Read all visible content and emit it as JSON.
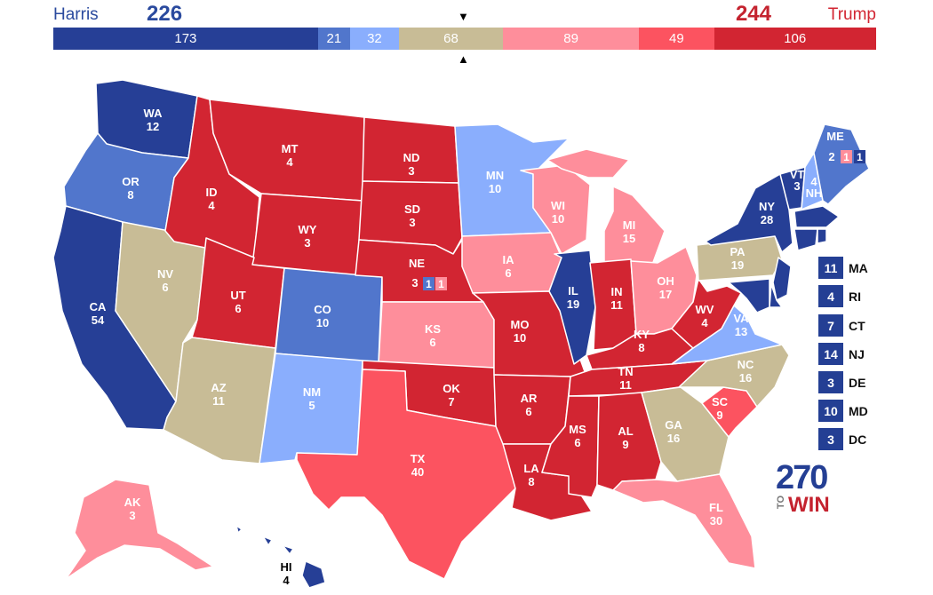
{
  "header": {
    "dem_name": "Harris",
    "dem_total": "226",
    "rep_name": "Trump",
    "rep_total": "244",
    "marker_down": "▼",
    "marker_up": "▲"
  },
  "tally": [
    {
      "label": "173",
      "value": 173,
      "color": "#263f96"
    },
    {
      "label": "21",
      "value": 21,
      "color": "#5176cc"
    },
    {
      "label": "32",
      "value": 32,
      "color": "#8aaefd"
    },
    {
      "label": "68",
      "value": 68,
      "color": "#c8bc96"
    },
    {
      "label": "89",
      "value": 89,
      "color": "#fe8e9b"
    },
    {
      "label": "49",
      "value": 49,
      "color": "#fc5360"
    },
    {
      "label": "106",
      "value": 106,
      "color": "#d22532"
    }
  ],
  "colors": {
    "safe_d": "#263f96",
    "likely_d": "#5176cc",
    "lean_d": "#8aaefd",
    "tossup": "#c8bc96",
    "lean_r": "#fe8e9b",
    "likely_r": "#fc5360",
    "safe_r": "#d22532"
  },
  "states": {
    "WA": {
      "abbr": "WA",
      "ev": "12",
      "rating": "safe_d"
    },
    "OR": {
      "abbr": "OR",
      "ev": "8",
      "rating": "likely_d"
    },
    "CA": {
      "abbr": "CA",
      "ev": "54",
      "rating": "safe_d"
    },
    "NV": {
      "abbr": "NV",
      "ev": "6",
      "rating": "tossup"
    },
    "ID": {
      "abbr": "ID",
      "ev": "4",
      "rating": "safe_r"
    },
    "MT": {
      "abbr": "MT",
      "ev": "4",
      "rating": "safe_r"
    },
    "WY": {
      "abbr": "WY",
      "ev": "3",
      "rating": "safe_r"
    },
    "UT": {
      "abbr": "UT",
      "ev": "6",
      "rating": "safe_r"
    },
    "AZ": {
      "abbr": "AZ",
      "ev": "11",
      "rating": "tossup"
    },
    "CO": {
      "abbr": "CO",
      "ev": "10",
      "rating": "likely_d"
    },
    "NM": {
      "abbr": "NM",
      "ev": "5",
      "rating": "lean_d"
    },
    "ND": {
      "abbr": "ND",
      "ev": "3",
      "rating": "safe_r"
    },
    "SD": {
      "abbr": "SD",
      "ev": "3",
      "rating": "safe_r"
    },
    "NE": {
      "abbr": "NE",
      "ev": "3",
      "rating": "safe_r"
    },
    "KS": {
      "abbr": "KS",
      "ev": "6",
      "rating": "lean_r"
    },
    "OK": {
      "abbr": "OK",
      "ev": "7",
      "rating": "safe_r"
    },
    "TX": {
      "abbr": "TX",
      "ev": "40",
      "rating": "likely_r"
    },
    "MN": {
      "abbr": "MN",
      "ev": "10",
      "rating": "lean_d"
    },
    "IA": {
      "abbr": "IA",
      "ev": "6",
      "rating": "lean_r"
    },
    "MO": {
      "abbr": "MO",
      "ev": "10",
      "rating": "safe_r"
    },
    "AR": {
      "abbr": "AR",
      "ev": "6",
      "rating": "safe_r"
    },
    "LA": {
      "abbr": "LA",
      "ev": "8",
      "rating": "safe_r"
    },
    "WI": {
      "abbr": "WI",
      "ev": "10",
      "rating": "lean_r"
    },
    "IL": {
      "abbr": "IL",
      "ev": "19",
      "rating": "safe_d"
    },
    "MI": {
      "abbr": "MI",
      "ev": "15",
      "rating": "lean_r"
    },
    "IN": {
      "abbr": "IN",
      "ev": "11",
      "rating": "safe_r"
    },
    "OH": {
      "abbr": "OH",
      "ev": "17",
      "rating": "lean_r"
    },
    "KY": {
      "abbr": "KY",
      "ev": "8",
      "rating": "safe_r"
    },
    "TN": {
      "abbr": "TN",
      "ev": "11",
      "rating": "safe_r"
    },
    "MS": {
      "abbr": "MS",
      "ev": "6",
      "rating": "safe_r"
    },
    "AL": {
      "abbr": "AL",
      "ev": "9",
      "rating": "safe_r"
    },
    "GA": {
      "abbr": "GA",
      "ev": "16",
      "rating": "tossup"
    },
    "FL": {
      "abbr": "FL",
      "ev": "30",
      "rating": "lean_r"
    },
    "SC": {
      "abbr": "SC",
      "ev": "9",
      "rating": "likely_r"
    },
    "NC": {
      "abbr": "NC",
      "ev": "16",
      "rating": "tossup"
    },
    "VA": {
      "abbr": "VA",
      "ev": "13",
      "rating": "lean_d"
    },
    "WV": {
      "abbr": "WV",
      "ev": "4",
      "rating": "safe_r"
    },
    "PA": {
      "abbr": "PA",
      "ev": "19",
      "rating": "tossup"
    },
    "NY": {
      "abbr": "NY",
      "ev": "28",
      "rating": "safe_d"
    },
    "VT": {
      "abbr": "VT",
      "ev": "3",
      "rating": "safe_d"
    },
    "NH": {
      "abbr": "NH",
      "ev": "4",
      "rating": "lean_d"
    },
    "ME": {
      "abbr": "ME",
      "ev": "2",
      "rating": "likely_d"
    },
    "AK": {
      "abbr": "AK",
      "ev": "3",
      "rating": "lean_r"
    },
    "HI": {
      "abbr": "HI",
      "ev": "4",
      "rating": "safe_d"
    }
  },
  "splits": {
    "ME_1": {
      "label": "1",
      "rating": "lean_r"
    },
    "ME_2": {
      "label": "1",
      "rating": "safe_d"
    },
    "NE_1": {
      "label": "1",
      "rating": "likely_d"
    },
    "NE_2": {
      "label": "1",
      "rating": "lean_r"
    }
  },
  "small_states": [
    {
      "abbr": "MA",
      "ev": "11"
    },
    {
      "abbr": "RI",
      "ev": "4"
    },
    {
      "abbr": "CT",
      "ev": "7"
    },
    {
      "abbr": "NJ",
      "ev": "14"
    },
    {
      "abbr": "DE",
      "ev": "3"
    },
    {
      "abbr": "MD",
      "ev": "10"
    },
    {
      "abbr": "DC",
      "ev": "3"
    }
  ],
  "logo": {
    "number": "270",
    "to": "TO",
    "win": "WIN"
  }
}
